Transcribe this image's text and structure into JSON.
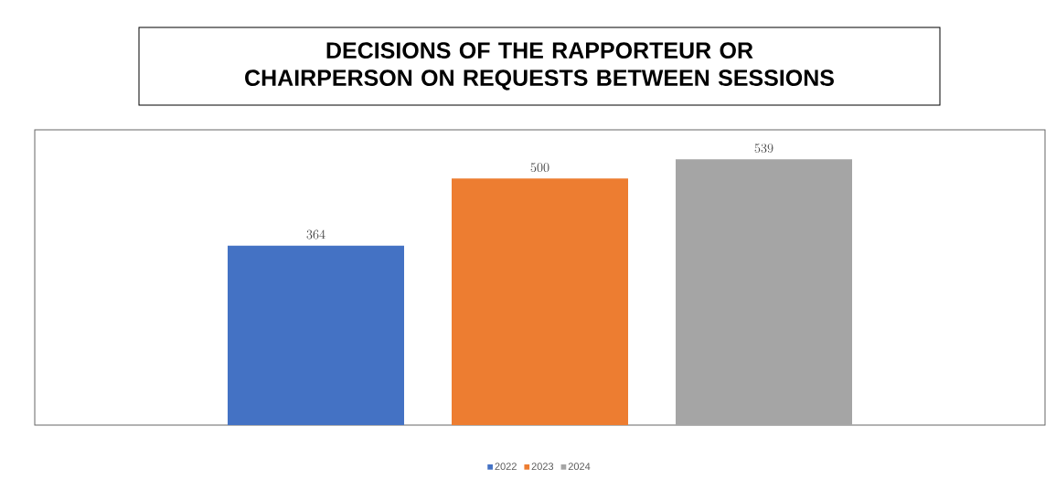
{
  "chart_data": {
    "type": "bar",
    "title": "DECISIONS OF THE RAPPORTEUR OR CHAIRPERSON ON REQUESTS BETWEEN SESSIONS",
    "categories": [
      null
    ],
    "series": [
      {
        "name": "2022",
        "color": "#4472c4",
        "values": [
          364
        ]
      },
      {
        "name": "2023",
        "color": "#ed7d31",
        "values": [
          500
        ]
      },
      {
        "name": "2024",
        "color": "#a5a5a5",
        "values": [
          539
        ]
      }
    ],
    "data_labels": true,
    "legend": "bottom"
  }
}
